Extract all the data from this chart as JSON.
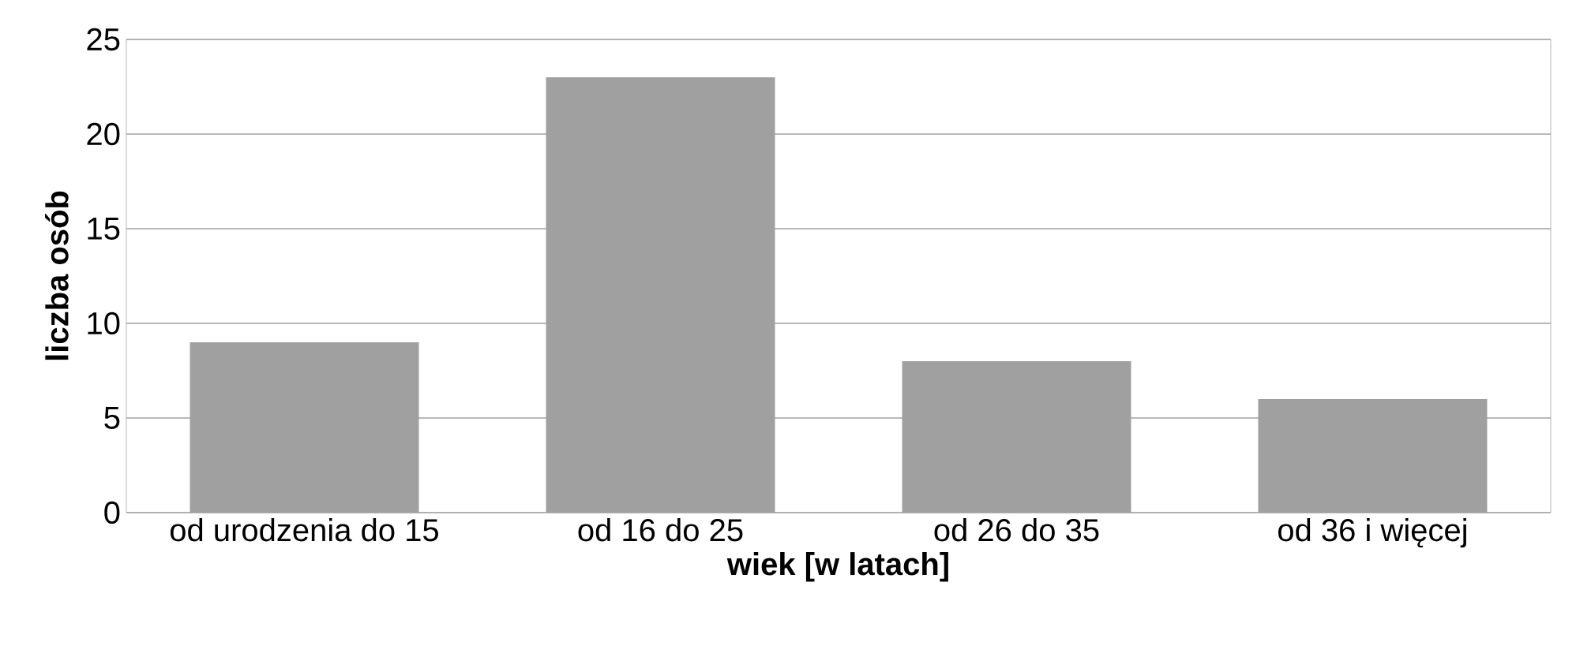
{
  "chart_data": {
    "type": "bar",
    "xlabel": "wiek [w latach]",
    "ylabel": "liczba osób",
    "categories": [
      "od urodzenia do 15",
      "od 16 do 25",
      "od 26 do 35",
      "od 36 i więcej"
    ],
    "values": [
      9,
      23,
      8,
      6
    ],
    "color": "#a0a0a0",
    "ylim": [
      0,
      25
    ],
    "yticks": [
      0,
      5,
      10,
      15,
      20,
      25
    ],
    "grid": "y"
  }
}
